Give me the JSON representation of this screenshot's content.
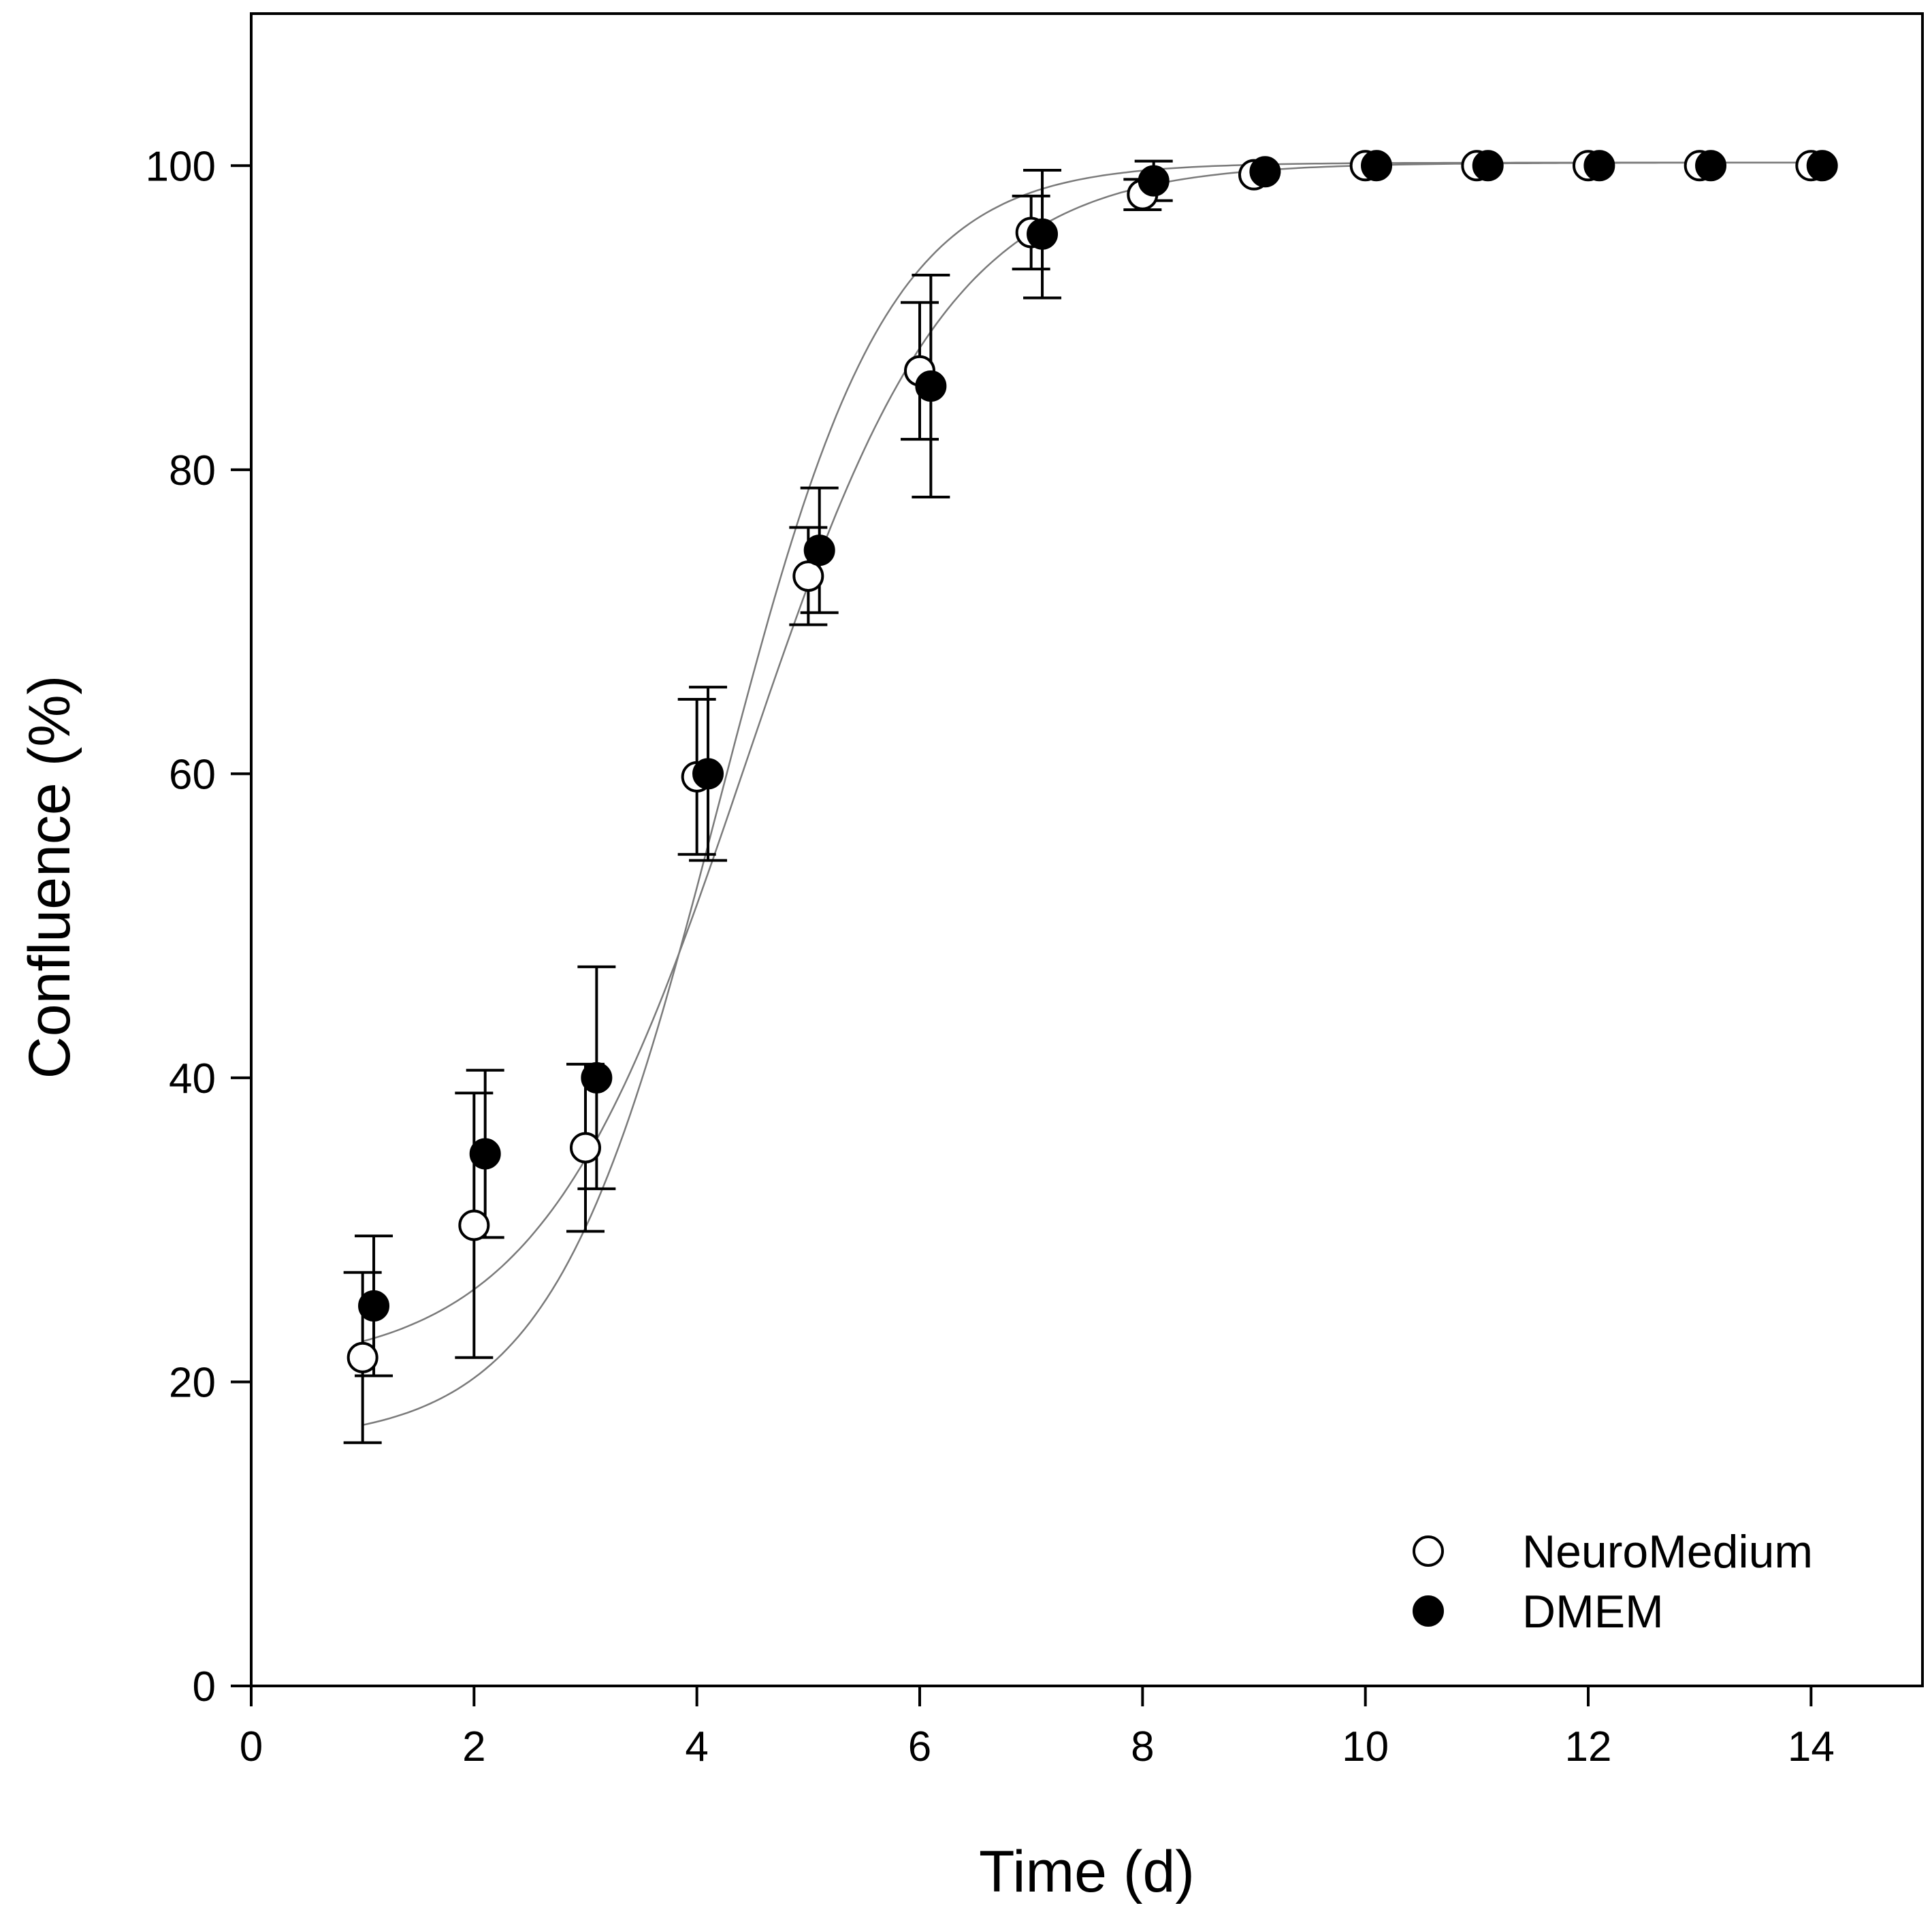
{
  "chart_data": {
    "type": "scatter",
    "xlabel": "Time (d)",
    "ylabel": "Confluence (%)",
    "xlim": [
      0,
      15
    ],
    "ylim": [
      0,
      110
    ],
    "xticks": [
      0,
      2,
      4,
      6,
      8,
      10,
      12,
      14
    ],
    "yticks": [
      0,
      20,
      40,
      60,
      80,
      100
    ],
    "xtick_labels": [
      "0",
      "2",
      "4",
      "6",
      "8",
      "10",
      "12",
      "14"
    ],
    "ytick_labels": [
      "0",
      "20",
      "40",
      "60",
      "80",
      "100"
    ],
    "grid": false,
    "legend_position": "bottom-right",
    "series": [
      {
        "name": "NeuroMedium",
        "marker": "open-circle",
        "x": [
          1,
          2,
          3,
          4,
          5,
          6,
          7,
          8,
          9,
          10,
          11,
          12,
          13,
          14
        ],
        "y": [
          21.6,
          30.3,
          35.4,
          59.8,
          73.0,
          86.5,
          95.6,
          98.1,
          99.4,
          100,
          100,
          100,
          100,
          100
        ],
        "err": [
          5.6,
          8.7,
          5.5,
          5.1,
          3.2,
          4.5,
          2.4,
          1.0,
          0,
          0,
          0,
          0,
          0,
          0
        ],
        "fit": {
          "min": 20.8,
          "max": 100.2,
          "x50": 4.43,
          "slope": 0.92
        }
      },
      {
        "name": "DMEM",
        "marker": "filled-circle",
        "x": [
          1.1,
          2.1,
          3.1,
          4.1,
          5.1,
          6.1,
          7.1,
          8.1,
          9.1,
          10.1,
          11.1,
          12.1,
          13.1,
          14.1
        ],
        "y": [
          25.0,
          35.0,
          40.0,
          60.0,
          74.7,
          85.5,
          95.5,
          99.0,
          99.6,
          100,
          100,
          100,
          100,
          100
        ],
        "err": [
          4.6,
          5.5,
          7.3,
          5.7,
          4.1,
          7.3,
          4.2,
          1.3,
          0,
          0,
          0,
          0,
          0,
          0
        ],
        "fit": {
          "min": 16.0,
          "max": 100.2,
          "x50": 4.2,
          "slope": 0.75
        }
      }
    ]
  }
}
